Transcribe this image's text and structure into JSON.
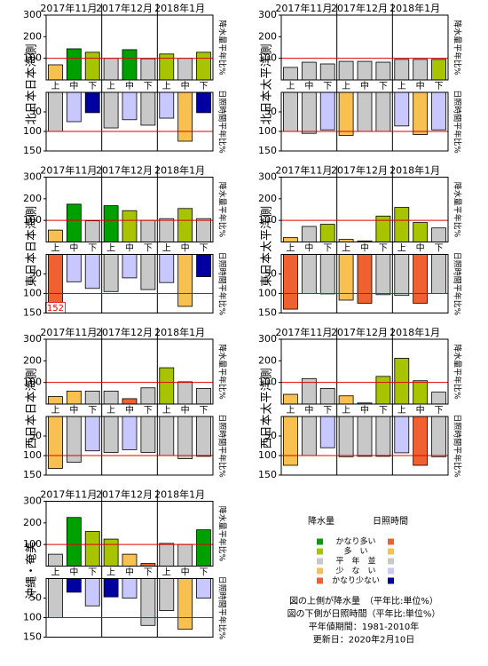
{
  "legend": {
    "precip_title": "降水量",
    "sun_title": "日照時間",
    "levels": [
      "かなり多い",
      "多　い",
      "平　年　並",
      "少　な　い",
      "かなり少ない"
    ],
    "precip_colors": [
      "#00a000",
      "#a8c400",
      "#c8c8c8",
      "#f8c050",
      "#f06030"
    ],
    "sun_colors": [
      "#f06030",
      "#f8c050",
      "#c8c8c8",
      "#c8c8ff",
      "#0000a0"
    ]
  },
  "notes": [
    "図の上側が降水量　（平年比:単位%）",
    "図の下側が日照時間（平年比:単位%）",
    "平年値期間：1981-2010年",
    "更新日：2020年2月10日"
  ],
  "chart_data": [
    {
      "type": "bar",
      "title": "北日本日本海側",
      "x_groups": [
        "2017年11月",
        "2017年12月",
        "2018年1月"
      ],
      "categories": [
        "上",
        "中",
        "下",
        "上",
        "中",
        "下",
        "上",
        "中",
        "下"
      ],
      "precip": {
        "axis_label": "降水量平年比%",
        "ylim": [
          0,
          300
        ],
        "yticks": [
          100,
          200,
          300
        ],
        "reference": 100,
        "values": [
          70,
          144,
          128,
          100,
          140,
          98,
          120,
          100,
          128
        ],
        "colors": [
          "#f8c050",
          "#00a000",
          "#a8c400",
          "#c8c8c8",
          "#00a000",
          "#c8c8c8",
          "#a8c400",
          "#c8c8c8",
          "#a8c400"
        ]
      },
      "sunshine": {
        "axis_label": "日照時間平年比%",
        "ylim": [
          0,
          150
        ],
        "inverted": true,
        "yticks": [
          50,
          100,
          150
        ],
        "reference": 100,
        "values": [
          100,
          75,
          52,
          91,
          70,
          84,
          66,
          125,
          52
        ],
        "colors": [
          "#c8c8c8",
          "#c8c8ff",
          "#0000a0",
          "#c8c8c8",
          "#c8c8ff",
          "#c8c8c8",
          "#c8c8ff",
          "#f8c050",
          "#0000a0"
        ]
      }
    },
    {
      "type": "bar",
      "title": "北日本太平洋側",
      "x_groups": [
        "2017年11月",
        "2017年12月",
        "2018年1月"
      ],
      "categories": [
        "上",
        "中",
        "下",
        "上",
        "中",
        "下",
        "上",
        "中",
        "下"
      ],
      "precip": {
        "axis_label": "降水量平年比%",
        "ylim": [
          0,
          300
        ],
        "yticks": [
          100,
          200,
          300
        ],
        "reference": 100,
        "values": [
          58,
          82,
          74,
          86,
          86,
          82,
          95,
          95,
          95
        ],
        "colors": [
          "#c8c8c8",
          "#c8c8c8",
          "#c8c8c8",
          "#c8c8c8",
          "#c8c8c8",
          "#c8c8c8",
          "#c8c8c8",
          "#c8c8c8",
          "#a8c400"
        ]
      },
      "sunshine": {
        "axis_label": "日照時間平年比%",
        "ylim": [
          0,
          150
        ],
        "inverted": true,
        "yticks": [
          50,
          100,
          150
        ],
        "reference": 100,
        "values": [
          100,
          105,
          96,
          110,
          100,
          100,
          86,
          108,
          96
        ],
        "colors": [
          "#c8c8c8",
          "#c8c8c8",
          "#c8c8ff",
          "#f8c050",
          "#c8c8c8",
          "#c8c8c8",
          "#c8c8ff",
          "#f8c050",
          "#c8c8ff"
        ]
      }
    },
    {
      "type": "bar",
      "title": "東日本日本海側",
      "x_groups": [
        "2017年11月",
        "2017年12月",
        "2018年1月"
      ],
      "categories": [
        "上",
        "中",
        "下",
        "上",
        "中",
        "下",
        "上",
        "中",
        "下"
      ],
      "precip": {
        "axis_label": "降水量平年比%",
        "ylim": [
          0,
          300
        ],
        "yticks": [
          100,
          200,
          300
        ],
        "reference": 100,
        "values": [
          55,
          175,
          98,
          168,
          145,
          100,
          108,
          155,
          108
        ],
        "colors": [
          "#f8c050",
          "#00a000",
          "#c8c8c8",
          "#00a000",
          "#a8c400",
          "#c8c8c8",
          "#c8c8c8",
          "#a8c400",
          "#c8c8c8"
        ]
      },
      "sunshine": {
        "axis_label": "日照時間平年比%",
        "ylim": [
          0,
          150
        ],
        "inverted": true,
        "yticks": [
          50,
          100,
          150
        ],
        "reference": 100,
        "values": [
          152,
          70,
          87,
          95,
          60,
          90,
          72,
          133,
          57
        ],
        "colors": [
          "#f06030",
          "#c8c8ff",
          "#c8c8ff",
          "#c8c8c8",
          "#c8c8ff",
          "#c8c8c8",
          "#c8c8ff",
          "#f8c050",
          "#0000a0"
        ]
      }
    },
    {
      "type": "bar",
      "title": "東日本太平洋側",
      "x_groups": [
        "2017年11月",
        "2017年12月",
        "2018年1月"
      ],
      "categories": [
        "上",
        "中",
        "下",
        "上",
        "中",
        "下",
        "上",
        "中",
        "下"
      ],
      "precip": {
        "axis_label": "降水量平年比%",
        "ylim": [
          0,
          300
        ],
        "yticks": [
          100,
          200,
          300
        ],
        "reference": 100,
        "values": [
          20,
          72,
          82,
          12,
          5,
          120,
          160,
          90,
          65
        ],
        "colors": [
          "#f8c050",
          "#c8c8c8",
          "#a8c400",
          "#f8c050",
          "#a8c400",
          "#a8c400",
          "#a8c400",
          "#a8c400",
          "#c8c8c8"
        ]
      },
      "sunshine": {
        "axis_label": "日照時間平年比%",
        "ylim": [
          0,
          150
        ],
        "inverted": true,
        "yticks": [
          50,
          100,
          150
        ],
        "reference": 100,
        "values": [
          140,
          100,
          101,
          117,
          125,
          103,
          105,
          125,
          100
        ],
        "colors": [
          "#f06030",
          "#c8c8c8",
          "#c8c8c8",
          "#f8c050",
          "#f06030",
          "#c8c8c8",
          "#c8c8c8",
          "#f06030",
          "#c8c8c8"
        ]
      }
    },
    {
      "type": "bar",
      "title": "西日本日本海側",
      "x_groups": [
        "2017年11月",
        "2017年12月",
        "2018年1月"
      ],
      "categories": [
        "上",
        "中",
        "下",
        "上",
        "中",
        "下",
        "上",
        "中",
        "下"
      ],
      "precip": {
        "axis_label": "降水量平年比%",
        "ylim": [
          0,
          300
        ],
        "yticks": [
          100,
          200,
          300
        ],
        "reference": 100,
        "values": [
          35,
          60,
          60,
          60,
          25,
          75,
          168,
          103,
          72
        ],
        "colors": [
          "#f8c050",
          "#f8c050",
          "#c8c8c8",
          "#c8c8c8",
          "#f06030",
          "#c8c8c8",
          "#a8c400",
          "#c8c8c8",
          "#c8c8c8"
        ]
      },
      "sunshine": {
        "axis_label": "日照時間平年比%",
        "ylim": [
          0,
          150
        ],
        "inverted": true,
        "yticks": [
          50,
          100,
          150
        ],
        "reference": 100,
        "values": [
          133,
          117,
          88,
          92,
          85,
          92,
          100,
          108,
          102
        ],
        "colors": [
          "#f8c050",
          "#c8c8c8",
          "#c8c8ff",
          "#c8c8c8",
          "#c8c8ff",
          "#c8c8c8",
          "#c8c8c8",
          "#c8c8c8",
          "#c8c8c8"
        ]
      }
    },
    {
      "type": "bar",
      "title": "西日本太平洋側",
      "x_groups": [
        "2017年11月",
        "2017年12月",
        "2018年1月"
      ],
      "categories": [
        "上",
        "中",
        "下",
        "上",
        "中",
        "下",
        "上",
        "中",
        "下"
      ],
      "precip": {
        "axis_label": "降水量平年比%",
        "ylim": [
          0,
          300
        ],
        "yticks": [
          100,
          200,
          300
        ],
        "reference": 100,
        "values": [
          45,
          118,
          72,
          38,
          5,
          128,
          212,
          108,
          55
        ],
        "colors": [
          "#f8c050",
          "#c8c8c8",
          "#c8c8c8",
          "#f8c050",
          "#f06030",
          "#a8c400",
          "#a8c400",
          "#a8c400",
          "#c8c8c8"
        ]
      },
      "sunshine": {
        "axis_label": "日照時間平年比%",
        "ylim": [
          0,
          150
        ],
        "inverted": true,
        "yticks": [
          50,
          100,
          150
        ],
        "reference": 100,
        "values": [
          125,
          100,
          80,
          103,
          102,
          102,
          93,
          125,
          103
        ],
        "colors": [
          "#f8c050",
          "#c8c8c8",
          "#c8c8ff",
          "#c8c8c8",
          "#c8c8c8",
          "#c8c8c8",
          "#c8c8ff",
          "#f06030",
          "#c8c8c8"
        ]
      }
    },
    {
      "type": "bar",
      "title": "沖縄・奄美",
      "x_groups": [
        "2017年11月",
        "2017年12月",
        "2018年1月"
      ],
      "categories": [
        "上",
        "中",
        "下",
        "上",
        "中",
        "下",
        "上",
        "中",
        "下"
      ],
      "precip": {
        "axis_label": "降水量平年比%",
        "ylim": [
          0,
          300
        ],
        "yticks": [
          100,
          200,
          300
        ],
        "reference": 100,
        "values": [
          55,
          225,
          160,
          125,
          55,
          12,
          105,
          100,
          168
        ],
        "colors": [
          "#c8c8c8",
          "#00a000",
          "#a8c400",
          "#a8c400",
          "#f8c050",
          "#f06030",
          "#c8c8c8",
          "#c8c8c8",
          "#00a000"
        ]
      },
      "sunshine": {
        "axis_label": "日照時間平年比%",
        "ylim": [
          0,
          150
        ],
        "inverted": true,
        "yticks": [
          50,
          100,
          150
        ],
        "reference": 100,
        "values": [
          100,
          35,
          70,
          47,
          50,
          120,
          82,
          130,
          50
        ],
        "colors": [
          "#c8c8c8",
          "#0000a0",
          "#c8c8ff",
          "#0000a0",
          "#c8c8ff",
          "#c8c8c8",
          "#c8c8c8",
          "#f8c050",
          "#c8c8ff"
        ]
      }
    }
  ]
}
